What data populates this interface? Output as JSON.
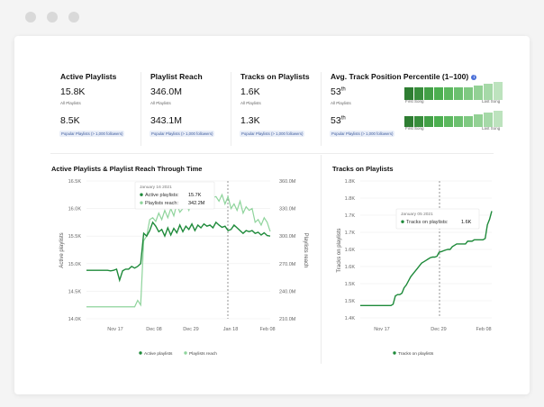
{
  "stats": [
    {
      "title": "Active Playlists",
      "v1": "15.8K",
      "sub1": "All Playlists",
      "v2": "8.5K",
      "sub2": "Popular Playlists (> 1,000 followers)"
    },
    {
      "title": "Playlist Reach",
      "v1": "346.0M",
      "sub1": "All Playlists",
      "v2": "343.1M",
      "sub2": "Popular Playlists (> 1,000 followers)"
    },
    {
      "title": "Tracks on Playlists",
      "v1": "1.6K",
      "sub1": "All Playlists",
      "v2": "1.3K",
      "sub2": "Popular Playlists (> 1,000 followers)"
    }
  ],
  "percentile": {
    "title": "Avg. Track Position Percentile (1–100)",
    "v1": "53",
    "v1_sup": "th",
    "sub1": "All Playlists",
    "v2": "53",
    "v2_sup": "th",
    "sub2": "Popular Playlists (> 1,000 followers)",
    "first_label": "First Song",
    "last_label": "Last Song",
    "colors": [
      "#2e7d32",
      "#388e3c",
      "#43a047",
      "#4caf50",
      "#5cb85f",
      "#6cc070",
      "#7fc982",
      "#93d195",
      "#a6d9a8",
      "#bde3be"
    ]
  },
  "chart_data": [
    {
      "type": "line",
      "title": "Active Playlists & Playlist Reach Through Time",
      "ylabel": "Active playlists",
      "y2label": "Playlists reach",
      "ylim": [
        14000,
        16500
      ],
      "y2lim": [
        210000000,
        360000000
      ],
      "yticks": [
        "14.0K",
        "14.5K",
        "15.0K",
        "15.5K",
        "16.0K",
        "16.5K"
      ],
      "y2ticks": [
        "210.0M",
        "240.0M",
        "270.0M",
        "300.0M",
        "330.0M",
        "360.0M"
      ],
      "xticks": [
        "Nov 17",
        "Dec 08",
        "Dec 29",
        "Jan 18",
        "Feb 08"
      ],
      "series": [
        {
          "name": "Active playlists",
          "color": "#1e8a3a",
          "values": [
            14880,
            14880,
            14880,
            14880,
            14880,
            14880,
            14880,
            14880,
            14870,
            14880,
            14900,
            14700,
            14870,
            14900,
            14900,
            14950,
            14920,
            14950,
            15000,
            15550,
            15500,
            15600,
            15750,
            15680,
            15580,
            15620,
            15500,
            15650,
            15520,
            15640,
            15560,
            15700,
            15580,
            15680,
            15620,
            15720,
            15600,
            15700,
            15650,
            15720,
            15680,
            15700,
            15650,
            15750,
            15700,
            15660,
            15680,
            15600,
            15620,
            15700,
            15650,
            15600,
            15550,
            15600,
            15580,
            15600,
            15550,
            15570,
            15520,
            15560,
            15510,
            15500
          ]
        },
        {
          "name": "Playlists reach",
          "color": "#8fd49c",
          "values": [
            223000000,
            223000000,
            223000000,
            223000000,
            223000000,
            223000000,
            223000000,
            223000000,
            223000000,
            223000000,
            223000000,
            223000000,
            223000000,
            223000000,
            223000000,
            223000000,
            223000000,
            230000000,
            225000000,
            295000000,
            300000000,
            318000000,
            320000000,
            316000000,
            325000000,
            318000000,
            328000000,
            320000000,
            330000000,
            322000000,
            335000000,
            326000000,
            330000000,
            335000000,
            328000000,
            338000000,
            332000000,
            333000000,
            338000000,
            335000000,
            340000000,
            345000000,
            342000000,
            343000000,
            338000000,
            345000000,
            335000000,
            343000000,
            330000000,
            335000000,
            328000000,
            338000000,
            325000000,
            332000000,
            328000000,
            330000000,
            315000000,
            318000000,
            312000000,
            320000000,
            315000000,
            305000000
          ]
        }
      ],
      "tooltip": {
        "date": "January 16 2021",
        "rows": [
          {
            "label": "Active playlists:",
            "value": "15.7K"
          },
          {
            "label": "Playlists reach:",
            "value": "342.2M"
          }
        ]
      },
      "legend": [
        "Active playlists",
        "Playlists reach"
      ]
    },
    {
      "type": "line",
      "title": "Tracks on Playlists",
      "ylabel": "Tracks on playlists",
      "ylim": [
        1400,
        1900
      ],
      "yticks": [
        "1.4K",
        "1.5K",
        "1.5K",
        "1.6K",
        "1.6K",
        "1.7K",
        "1.7K",
        "1.8K",
        "1.8K"
      ],
      "xticks": [
        "Nov 17",
        "Dec 29",
        "Feb 08"
      ],
      "series": [
        {
          "name": "Tracks on playlists",
          "color": "#1e8a3a",
          "values": [
            1445,
            1445,
            1445,
            1445,
            1445,
            1445,
            1445,
            1445,
            1445,
            1445,
            1445,
            1445,
            1445,
            1445,
            1445,
            1450,
            1480,
            1485,
            1485,
            1490,
            1510,
            1520,
            1535,
            1550,
            1560,
            1570,
            1580,
            1590,
            1600,
            1605,
            1610,
            1615,
            1620,
            1622,
            1622,
            1625,
            1640,
            1642,
            1645,
            1648,
            1650,
            1650,
            1660,
            1665,
            1670,
            1670,
            1670,
            1670,
            1670,
            1680,
            1680,
            1680,
            1685,
            1685,
            1685,
            1685,
            1685,
            1690,
            1740,
            1760,
            1790
          ]
        }
      ],
      "tooltip": {
        "date": "January 05 2021",
        "rows": [
          {
            "label": "Tracks on playlists:",
            "value": "1.6K"
          }
        ]
      },
      "legend": [
        "Tracks on playlists"
      ]
    }
  ]
}
